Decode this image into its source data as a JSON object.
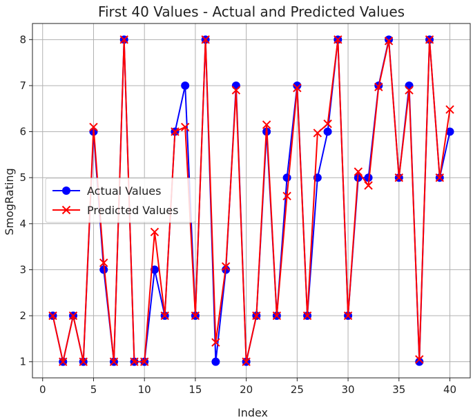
{
  "chart_data": {
    "type": "line",
    "title": "First 40 Values - Actual and Predicted Values",
    "xlabel": "Index",
    "ylabel": "SmogRating",
    "xlim": [
      -1,
      42
    ],
    "ylim": [
      0.65,
      8.35
    ],
    "xticks": [
      0,
      5,
      10,
      15,
      20,
      25,
      30,
      35,
      40
    ],
    "yticks": [
      1,
      2,
      3,
      4,
      5,
      6,
      7,
      8
    ],
    "grid": true,
    "legend_position": "center-left",
    "x": [
      1,
      2,
      3,
      4,
      5,
      6,
      7,
      8,
      9,
      10,
      11,
      12,
      13,
      14,
      15,
      16,
      17,
      18,
      19,
      20,
      21,
      22,
      23,
      24,
      25,
      26,
      27,
      28,
      29,
      30,
      31,
      32,
      33,
      34,
      35,
      36,
      37,
      38,
      39,
      40
    ],
    "series": [
      {
        "name": "Actual Values",
        "color": "#0000ff",
        "marker": "circle",
        "values": [
          2,
          1,
          2,
          1,
          6,
          3,
          1,
          8,
          1,
          1,
          3,
          2,
          6,
          7,
          2,
          8,
          1,
          3,
          7,
          1,
          2,
          6,
          2,
          5,
          7,
          2,
          5,
          6,
          8,
          2,
          5,
          5,
          7,
          8,
          5,
          7,
          1,
          8,
          5,
          6
        ]
      },
      {
        "name": "Predicted Values",
        "color": "#ff0000",
        "marker": "x",
        "values": [
          2,
          1,
          2,
          1,
          6.1,
          3.15,
          1,
          8,
          1,
          1,
          3.82,
          2,
          6,
          6.1,
          2,
          8,
          1.42,
          3.07,
          6.9,
          1,
          2,
          6.15,
          2,
          4.6,
          6.95,
          2,
          5.97,
          6.17,
          8,
          2,
          5.13,
          4.83,
          6.97,
          7.97,
          5,
          6.9,
          1.05,
          8,
          5,
          6.48
        ]
      }
    ]
  }
}
